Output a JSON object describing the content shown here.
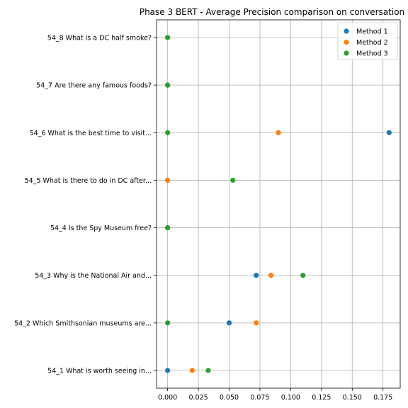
{
  "chart_data": {
    "type": "scatter",
    "title": "Phase 3 BERT - Average Precision comparison on conversation",
    "xlabel": "",
    "ylabel": "",
    "xlim": [
      -0.009,
      0.189
    ],
    "x_ticks": [
      0.0,
      0.025,
      0.05,
      0.075,
      0.1,
      0.125,
      0.15,
      0.175
    ],
    "x_tick_labels": [
      "0.000",
      "0.025",
      "0.050",
      "0.075",
      "0.100",
      "0.125",
      "0.150",
      "0.175"
    ],
    "categories": [
      "54_1 What is worth seeing in...",
      "54_2 Which Smithsonian museums are...",
      "54_3 Why is the National Air and...",
      "54_4 Is the Spy Museum free?",
      "54_5 What is there to do in DC after...",
      "54_6 What is the best time to visit...",
      "54_7 Are there any famous foods?",
      "54_8 What is a DC half smoke?"
    ],
    "series": [
      {
        "name": "Method 1",
        "color": "#1f77b4",
        "values": [
          0.0,
          0.05,
          0.072,
          0.0,
          0.0,
          0.18,
          0.0,
          0.0
        ]
      },
      {
        "name": "Method 2",
        "color": "#ff7f0e",
        "values": [
          0.02,
          0.072,
          0.084,
          0.0,
          0.0,
          0.09,
          0.0,
          0.0
        ]
      },
      {
        "name": "Method 3",
        "color": "#2ca02c",
        "values": [
          0.033,
          0.0,
          0.11,
          0.0,
          0.053,
          0.0,
          0.0,
          0.0
        ]
      }
    ],
    "grid": true,
    "legend_position": "top-right"
  }
}
